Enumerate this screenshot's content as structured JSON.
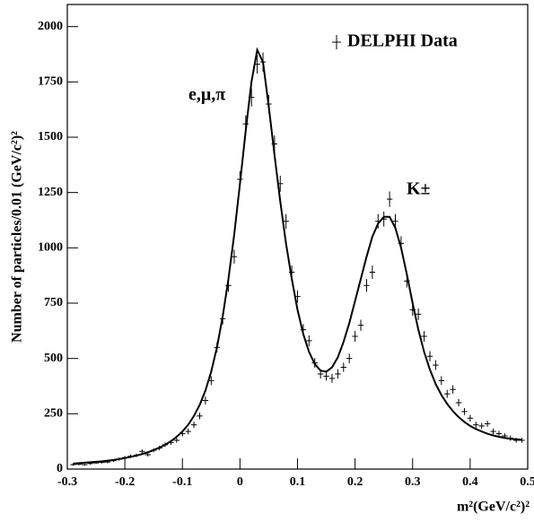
{
  "chart_data": {
    "type": "errorbar",
    "y_label": "Number of particles/0.01 (GeV/c²)²",
    "x_label": "m²(GeV/c²)²",
    "annotations": [
      "e,μ,π",
      "K±"
    ],
    "xlim": [
      -0.3,
      0.5
    ],
    "ylim": [
      0,
      2100
    ],
    "xticks": [
      -0.3,
      -0.2,
      -0.1,
      0,
      0.1,
      0.2,
      0.3,
      0.4,
      0.5
    ],
    "yticks": [
      0,
      250,
      500,
      750,
      1000,
      1250,
      1500,
      1750,
      2000
    ],
    "x": [
      -0.29,
      -0.28,
      -0.27,
      -0.26,
      -0.25,
      -0.24,
      -0.23,
      -0.22,
      -0.21,
      -0.2,
      -0.19,
      -0.18,
      -0.17,
      -0.16,
      -0.15,
      -0.14,
      -0.13,
      -0.12,
      -0.11,
      -0.1,
      -0.09,
      -0.08,
      -0.07,
      -0.06,
      -0.05,
      -0.04,
      -0.03,
      -0.02,
      -0.01,
      0,
      0.01,
      0.02,
      0.03,
      0.04,
      0.05,
      0.06,
      0.07,
      0.08,
      0.09,
      0.1,
      0.11,
      0.12,
      0.13,
      0.14,
      0.15,
      0.16,
      0.17,
      0.18,
      0.19,
      0.2,
      0.21,
      0.22,
      0.23,
      0.24,
      0.25,
      0.26,
      0.27,
      0.28,
      0.29,
      0.3,
      0.31,
      0.32,
      0.33,
      0.34,
      0.35,
      0.36,
      0.37,
      0.38,
      0.39,
      0.4,
      0.41,
      0.42,
      0.43,
      0.44,
      0.45,
      0.46,
      0.47,
      0.48,
      0.49
    ],
    "series": [
      {
        "name": "DELPHI Data",
        "color": "#000000",
        "values": [
          20,
          22,
          20,
          25,
          28,
          30,
          32,
          38,
          45,
          52,
          58,
          62,
          80,
          65,
          85,
          95,
          110,
          120,
          130,
          160,
          170,
          200,
          240,
          310,
          400,
          550,
          680,
          830,
          960,
          1310,
          1560,
          1680,
          1830,
          1840,
          1650,
          1470,
          1290,
          1120,
          890,
          780,
          630,
          580,
          480,
          430,
          420,
          410,
          430,
          460,
          500,
          600,
          650,
          830,
          890,
          1120,
          1130,
          1220,
          1120,
          1020,
          850,
          720,
          700,
          600,
          510,
          470,
          400,
          340,
          360,
          300,
          260,
          230,
          200,
          195,
          205,
          170,
          160,
          150,
          140,
          130,
          130
        ],
        "errors": [
          4,
          5,
          4,
          5,
          5,
          5,
          6,
          6,
          7,
          7,
          8,
          8,
          9,
          8,
          9,
          10,
          10,
          11,
          11,
          13,
          13,
          14,
          15,
          18,
          20,
          23,
          26,
          29,
          31,
          36,
          39,
          41,
          43,
          43,
          41,
          38,
          36,
          33,
          30,
          28,
          25,
          24,
          22,
          21,
          20,
          20,
          21,
          21,
          22,
          24,
          25,
          29,
          30,
          33,
          34,
          35,
          33,
          32,
          29,
          27,
          26,
          24,
          23,
          22,
          20,
          18,
          19,
          17,
          16,
          15,
          14,
          14,
          14,
          13,
          13,
          12,
          12,
          11,
          11
        ]
      },
      {
        "color": "#000000",
        "values": [
          25,
          27,
          29,
          31,
          33,
          35,
          38,
          41,
          45,
          50,
          55,
          61,
          68,
          76,
          86,
          97,
          110,
          126,
          146,
          170,
          200,
          240,
          290,
          355,
          440,
          550,
          690,
          860,
          1060,
          1290,
          1530,
          1750,
          1895,
          1840,
          1640,
          1420,
          1210,
          1020,
          860,
          720,
          610,
          530,
          475,
          445,
          440,
          460,
          505,
          575,
          660,
          760,
          860,
          960,
          1050,
          1110,
          1140,
          1140,
          1090,
          1000,
          880,
          750,
          630,
          530,
          450,
          385,
          335,
          295,
          262,
          235,
          213,
          195,
          181,
          170,
          160,
          152,
          146,
          141,
          137,
          135,
          133
        ]
      }
    ]
  }
}
